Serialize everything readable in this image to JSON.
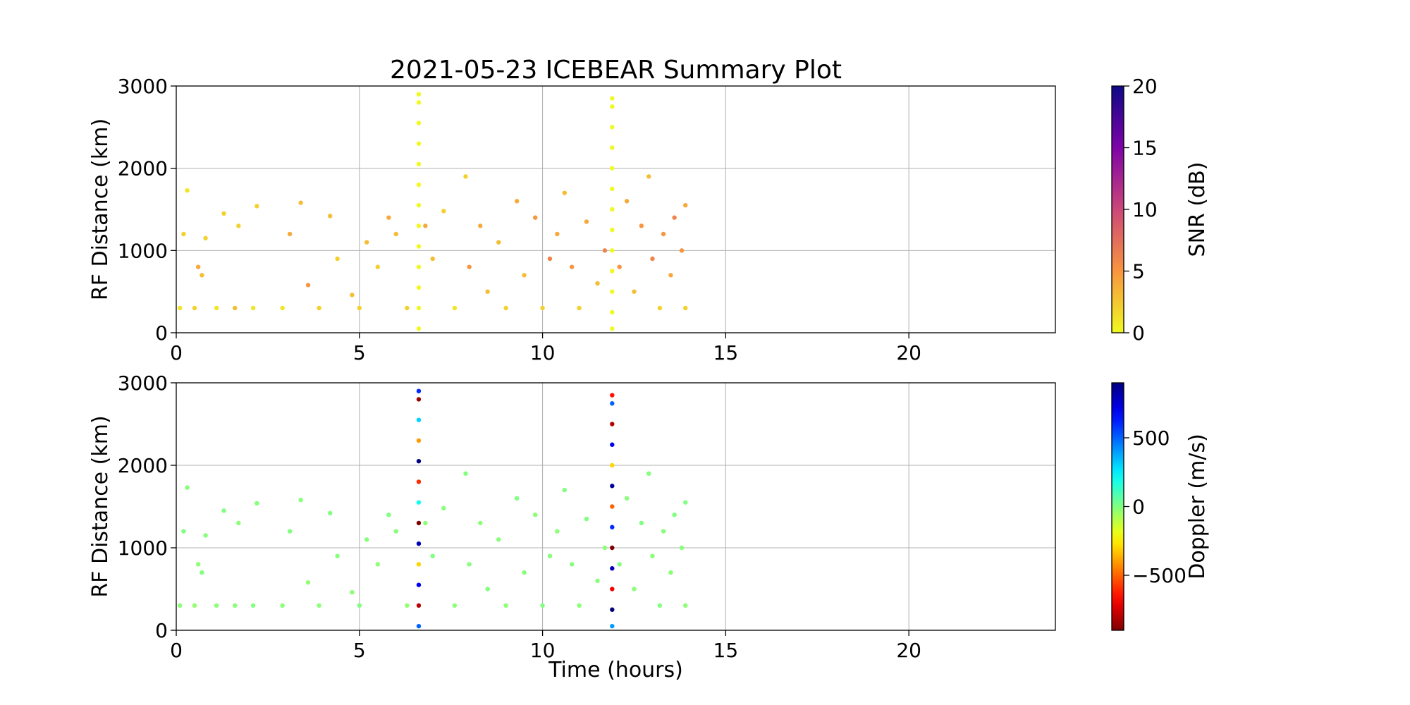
{
  "chart_data": [
    {
      "type": "scatter",
      "title": "2021-05-23 ICEBEAR Summary Plot",
      "ylabel": "RF Distance (km)",
      "x": [
        0.1,
        0.2,
        0.3,
        0.5,
        0.6,
        0.7,
        0.8,
        1.1,
        1.3,
        1.6,
        1.7,
        2.1,
        2.2,
        2.9,
        3.1,
        3.4,
        3.6,
        3.9,
        4.2,
        4.4,
        4.8,
        5.0,
        5.2,
        5.5,
        5.8,
        6.0,
        6.3,
        6.8,
        7.0,
        7.3,
        7.6,
        7.9,
        8.0,
        8.3,
        8.5,
        8.8,
        9.0,
        9.3,
        9.5,
        9.8,
        10.0,
        10.2,
        10.4,
        10.6,
        10.8,
        11.0,
        11.2,
        11.5,
        11.7,
        12.1,
        12.3,
        12.5,
        12.7,
        12.9,
        13.0,
        13.2,
        13.3,
        13.5,
        13.6,
        13.8,
        13.9,
        13.9,
        6.62,
        6.62,
        6.62,
        6.62,
        6.62,
        6.62,
        6.62,
        6.62,
        6.62,
        6.62,
        6.62,
        6.62,
        6.62,
        11.9,
        11.9,
        11.9,
        11.9,
        11.9,
        11.9,
        11.9,
        11.9,
        11.9,
        11.9,
        11.9,
        11.9,
        11.9
      ],
      "y": [
        300,
        1200,
        1730,
        300,
        800,
        700,
        1150,
        300,
        1450,
        300,
        1300,
        300,
        1540,
        300,
        1200,
        1580,
        580,
        300,
        1420,
        900,
        460,
        300,
        1100,
        800,
        1400,
        1200,
        300,
        1300,
        900,
        1480,
        300,
        1900,
        800,
        1300,
        500,
        1100,
        300,
        1600,
        700,
        1400,
        300,
        900,
        1200,
        1700,
        800,
        300,
        1350,
        600,
        1000,
        800,
        1600,
        500,
        1300,
        1900,
        900,
        300,
        1200,
        700,
        1400,
        1000,
        300,
        1550,
        50,
        300,
        550,
        800,
        1050,
        1300,
        1550,
        1800,
        2050,
        2300,
        2550,
        2800,
        2900,
        50,
        250,
        500,
        750,
        1000,
        1250,
        1500,
        1750,
        2000,
        2250,
        2500,
        2750,
        2850
      ],
      "c": [
        1,
        2,
        1,
        2,
        4,
        3,
        2,
        1,
        2,
        3,
        2,
        1,
        2,
        1,
        4,
        3,
        5,
        2,
        3,
        2,
        3,
        2,
        3,
        2,
        4,
        3,
        2,
        4,
        3,
        2,
        1,
        2,
        5,
        4,
        3,
        3,
        2,
        4,
        3,
        5,
        2,
        6,
        4,
        3,
        5,
        2,
        4,
        3,
        6,
        5,
        4,
        3,
        5,
        3,
        6,
        2,
        5,
        4,
        6,
        5,
        2,
        4,
        0,
        0,
        0,
        0,
        0,
        0,
        0,
        0,
        0,
        0,
        0,
        0,
        0,
        0,
        0,
        0,
        0,
        0,
        0,
        0,
        0,
        0,
        0,
        0,
        0,
        0
      ],
      "xlim": [
        0,
        24
      ],
      "xticks": [
        0,
        5,
        10,
        15,
        20
      ],
      "ylim": [
        0,
        3000
      ],
      "yticks": [
        0,
        1000,
        2000,
        3000
      ],
      "grid": true,
      "colorbar": {
        "label": "SNR (dB)",
        "cmap": "plasma_r",
        "lim": [
          0,
          20
        ],
        "ticks": [
          0,
          5,
          10,
          15,
          20
        ]
      }
    },
    {
      "type": "scatter",
      "xlabel": "Time (hours)",
      "ylabel": "RF Distance (km)",
      "x": [
        0.1,
        0.2,
        0.3,
        0.5,
        0.6,
        0.7,
        0.8,
        1.1,
        1.3,
        1.6,
        1.7,
        2.1,
        2.2,
        2.9,
        3.1,
        3.4,
        3.6,
        3.9,
        4.2,
        4.4,
        4.8,
        5.0,
        5.2,
        5.5,
        5.8,
        6.0,
        6.3,
        6.8,
        7.0,
        7.3,
        7.6,
        7.9,
        8.0,
        8.3,
        8.5,
        8.8,
        9.0,
        9.3,
        9.5,
        9.8,
        10.0,
        10.2,
        10.4,
        10.6,
        10.8,
        11.0,
        11.2,
        11.5,
        11.7,
        12.1,
        12.3,
        12.5,
        12.7,
        12.9,
        13.0,
        13.2,
        13.3,
        13.5,
        13.6,
        13.8,
        13.9,
        13.9,
        6.62,
        6.62,
        6.62,
        6.62,
        6.62,
        6.62,
        6.62,
        6.62,
        6.62,
        6.62,
        6.62,
        6.62,
        6.62,
        11.9,
        11.9,
        11.9,
        11.9,
        11.9,
        11.9,
        11.9,
        11.9,
        11.9,
        11.9,
        11.9,
        11.9,
        11.9
      ],
      "y": [
        300,
        1200,
        1730,
        300,
        800,
        700,
        1150,
        300,
        1450,
        300,
        1300,
        300,
        1540,
        300,
        1200,
        1580,
        580,
        300,
        1420,
        900,
        460,
        300,
        1100,
        800,
        1400,
        1200,
        300,
        1300,
        900,
        1480,
        300,
        1900,
        800,
        1300,
        500,
        1100,
        300,
        1600,
        700,
        1400,
        300,
        900,
        1200,
        1700,
        800,
        300,
        1350,
        600,
        1000,
        800,
        1600,
        500,
        1300,
        1900,
        900,
        300,
        1200,
        700,
        1400,
        1000,
        300,
        1550,
        50,
        300,
        550,
        800,
        1050,
        1300,
        1550,
        1800,
        2050,
        2300,
        2550,
        2800,
        2900,
        50,
        250,
        500,
        750,
        1000,
        1250,
        1500,
        1750,
        2000,
        2250,
        2500,
        2750,
        2850
      ],
      "c": [
        -20,
        0,
        -10,
        -30,
        -20,
        0,
        -10,
        -20,
        0,
        -10,
        -20,
        0,
        -10,
        -20,
        0,
        -10,
        -30,
        -20,
        0,
        -10,
        -20,
        0,
        -10,
        -20,
        0,
        -10,
        -30,
        -20,
        0,
        -10,
        -20,
        0,
        -10,
        -20,
        0,
        -10,
        -20,
        0,
        -10,
        -20,
        0,
        -10,
        -20,
        0,
        -10,
        -20,
        0,
        -10,
        -20,
        0,
        -10,
        -20,
        0,
        -10,
        -20,
        0,
        -10,
        -20,
        0,
        -10,
        -20,
        0,
        500,
        -800,
        700,
        -300,
        800,
        -900,
        200,
        -600,
        900,
        -400,
        300,
        -850,
        600,
        400,
        900,
        -700,
        800,
        -900,
        600,
        -500,
        850,
        -300,
        700,
        -800,
        500,
        -650
      ],
      "xlim": [
        0,
        24
      ],
      "xticks": [
        0,
        5,
        10,
        15,
        20
      ],
      "ylim": [
        0,
        3000
      ],
      "yticks": [
        0,
        1000,
        2000,
        3000
      ],
      "grid": true,
      "colorbar": {
        "label": "Doppler (m/s)",
        "cmap": "jet_r",
        "lim": [
          -900,
          900
        ],
        "ticks": [
          {
            "value": -500,
            "label": "−500"
          },
          0,
          500
        ]
      }
    }
  ]
}
